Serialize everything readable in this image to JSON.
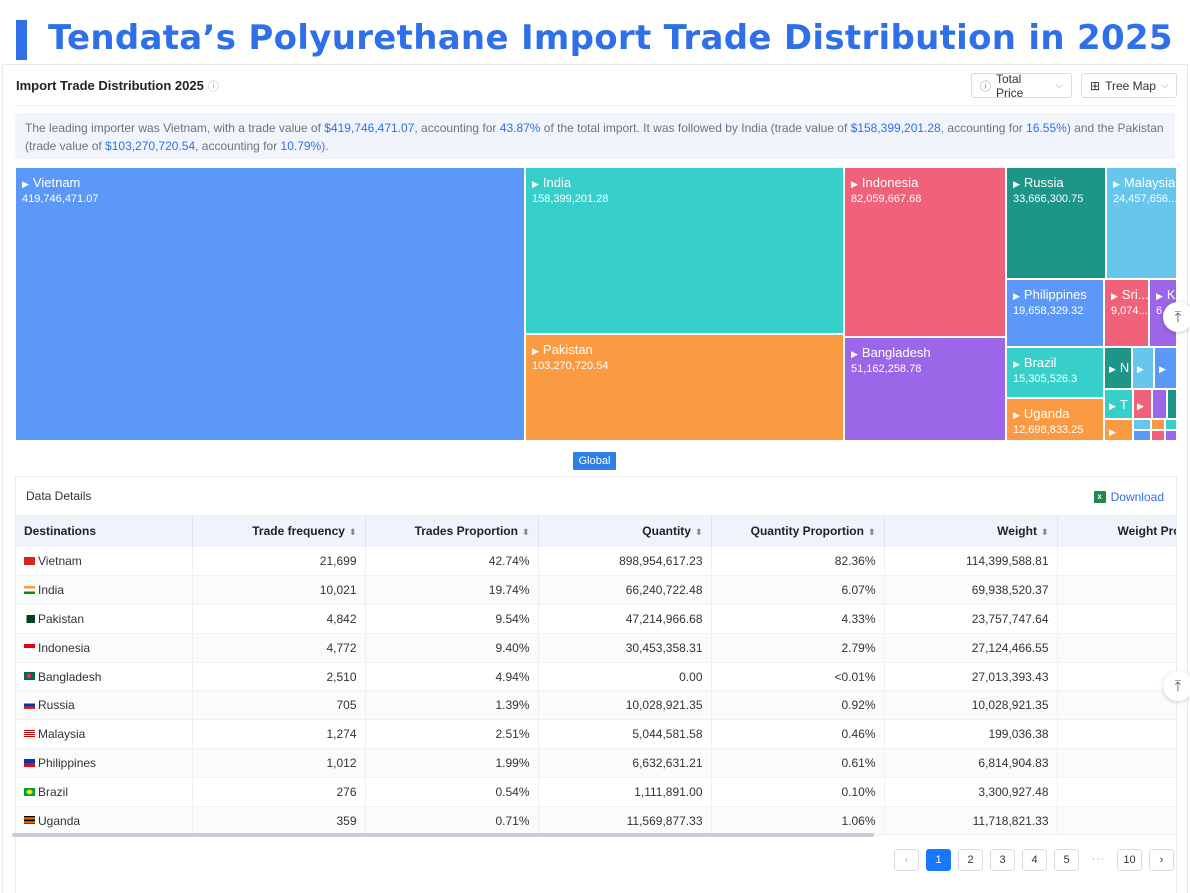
{
  "hero": {
    "title": "Tendata’s Polyurethane Import Trade Distribution in 2025"
  },
  "panel": {
    "title": "Import Trade Distribution 2025",
    "price_select": "Total Price",
    "view_select": "Tree Map"
  },
  "summary": {
    "t1": "The leading importer was Vietnam, with a trade value of ",
    "v1": "$419,746,471.07",
    "t2": ", accounting for ",
    "p1": "43.87%",
    "t3": " of the total import. It was followed by India (trade value of ",
    "v2": "$158,399,201.28",
    "t4": ", accounting for ",
    "p2": "16.55%",
    "t5": ") and the Pakistan (trade value of ",
    "v3": "$103,270,720.54",
    "t6": ", accounting for ",
    "p3": "10.79%",
    "t7": ")."
  },
  "treemap": {
    "tiles": [
      {
        "name": "Vietnam",
        "value": "419,746,471.07",
        "color": "#5b98f7"
      },
      {
        "name": "India",
        "value": "158,399,201.28",
        "color": "#36cfc9"
      },
      {
        "name": "Pakistan",
        "value": "103,270,720.54",
        "color": "#fa9a42"
      },
      {
        "name": "Indonesia",
        "value": "82,059,667.68",
        "color": "#f0617a"
      },
      {
        "name": "Bangladesh",
        "value": "51,162,258.78",
        "color": "#9c66e8"
      },
      {
        "name": "Russia",
        "value": "33,666,300.75",
        "color": "#1d9688"
      },
      {
        "name": "Malaysia",
        "value": "24,457,656....",
        "color": "#66c6ec"
      },
      {
        "name": "Philippines",
        "value": "19,658,329.32",
        "color": "#5b98f7"
      },
      {
        "name": "Brazil",
        "value": "15,305,526.3",
        "color": "#36cfc9"
      },
      {
        "name": "Uganda",
        "value": "12,698,833.25",
        "color": "#fa9a42"
      },
      {
        "name": "Sri...",
        "value": "9,074...",
        "color": "#f0617a"
      },
      {
        "name": "K",
        "value": "6,...",
        "color": "#9c66e8"
      },
      {
        "name": "N",
        "value": "",
        "color": "#1d9688"
      },
      {
        "name": "T",
        "value": "",
        "color": "#36cfc9"
      }
    ],
    "root_label": "Global"
  },
  "details": {
    "title": "Data Details",
    "download": "Download",
    "columns": [
      "Destinations",
      "Trade frequency",
      "Trades Proportion",
      "Quantity",
      "Quantity Proportion",
      "Weight",
      "Weight Prop"
    ],
    "rows": [
      [
        "Vietnam",
        "21,699",
        "42.74%",
        "898,954,617.23",
        "82.36%",
        "114,399,588.81",
        ""
      ],
      [
        "India",
        "10,021",
        "19.74%",
        "66,240,722.48",
        "6.07%",
        "69,938,520.37",
        ""
      ],
      [
        "Pakistan",
        "4,842",
        "9.54%",
        "47,214,966.68",
        "4.33%",
        "23,757,747.64",
        ""
      ],
      [
        "Indonesia",
        "4,772",
        "9.40%",
        "30,453,358.31",
        "2.79%",
        "27,124,466.55",
        ""
      ],
      [
        "Bangladesh",
        "2,510",
        "4.94%",
        "0.00",
        "<0.01%",
        "27,013,393.43",
        ""
      ],
      [
        "Russia",
        "705",
        "1.39%",
        "10,028,921.35",
        "0.92%",
        "10,028,921.35",
        ""
      ],
      [
        "Malaysia",
        "1,274",
        "2.51%",
        "5,044,581.58",
        "0.46%",
        "199,036.38",
        ""
      ],
      [
        "Philippines",
        "1,012",
        "1.99%",
        "6,632,631.21",
        "0.61%",
        "6,814,904.83",
        ""
      ],
      [
        "Brazil",
        "276",
        "0.54%",
        "1,111,891.00",
        "0.10%",
        "3,300,927.48",
        ""
      ],
      [
        "Uganda",
        "359",
        "0.71%",
        "11,569,877.33",
        "1.06%",
        "11,718,821.33",
        ""
      ]
    ]
  },
  "pagination": {
    "prev": "‹",
    "pages": [
      "1",
      "2",
      "3",
      "4",
      "5"
    ],
    "ellipsis": "···",
    "last": "10",
    "next": "›",
    "active": "1"
  }
}
